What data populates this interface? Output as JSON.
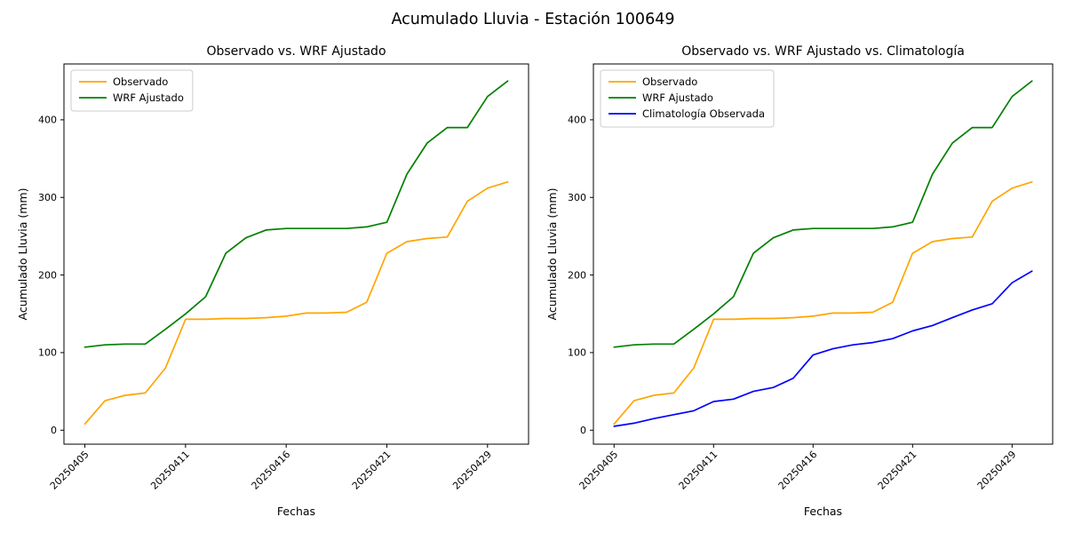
{
  "figure": {
    "title": "Acumulado Lluvia - Estación 100649"
  },
  "chart_data": [
    {
      "type": "line",
      "title": "Observado vs. WRF Ajustado",
      "xlabel": "Fechas",
      "ylabel": "Acumulado Lluvia (mm)",
      "ylim": [
        -18,
        472
      ],
      "yticks": [
        0,
        100,
        200,
        300,
        400
      ],
      "grid": false,
      "legend_position": "upper-left",
      "n_points": 22,
      "xticks": [
        {
          "index": 0,
          "label": "20250405"
        },
        {
          "index": 5,
          "label": "20250411"
        },
        {
          "index": 10,
          "label": "20250416"
        },
        {
          "index": 15,
          "label": "20250421"
        },
        {
          "index": 20,
          "label": "20250429"
        }
      ],
      "series": [
        {
          "name": "Observado",
          "color": "#ffa500",
          "values": [
            8,
            38,
            45,
            48,
            80,
            143,
            143,
            144,
            144,
            145,
            147,
            151,
            151,
            152,
            165,
            228,
            243,
            247,
            249,
            295,
            312,
            320
          ]
        },
        {
          "name": "WRF Ajustado",
          "color": "#008000",
          "values": [
            107,
            110,
            111,
            111,
            130,
            150,
            172,
            228,
            248,
            258,
            260,
            260,
            260,
            260,
            262,
            268,
            330,
            370,
            390,
            390,
            430,
            450
          ]
        }
      ]
    },
    {
      "type": "line",
      "title": "Observado vs. WRF Ajustado vs. Climatología",
      "xlabel": "Fechas",
      "ylabel": "Acumulado Lluvia (mm)",
      "ylim": [
        -18,
        472
      ],
      "yticks": [
        0,
        100,
        200,
        300,
        400
      ],
      "grid": false,
      "legend_position": "upper-left",
      "n_points": 22,
      "xticks": [
        {
          "index": 0,
          "label": "20250405"
        },
        {
          "index": 5,
          "label": "20250411"
        },
        {
          "index": 10,
          "label": "20250416"
        },
        {
          "index": 15,
          "label": "20250421"
        },
        {
          "index": 20,
          "label": "20250429"
        }
      ],
      "series": [
        {
          "name": "Observado",
          "color": "#ffa500",
          "values": [
            8,
            38,
            45,
            48,
            80,
            143,
            143,
            144,
            144,
            145,
            147,
            151,
            151,
            152,
            165,
            228,
            243,
            247,
            249,
            295,
            312,
            320
          ]
        },
        {
          "name": "WRF Ajustado",
          "color": "#008000",
          "values": [
            107,
            110,
            111,
            111,
            130,
            150,
            172,
            228,
            248,
            258,
            260,
            260,
            260,
            260,
            262,
            268,
            330,
            370,
            390,
            390,
            430,
            450
          ]
        },
        {
          "name": "Climatología Observada",
          "color": "#0000ff",
          "values": [
            5,
            9,
            15,
            20,
            25,
            37,
            40,
            50,
            55,
            67,
            97,
            105,
            110,
            113,
            118,
            128,
            135,
            145,
            155,
            163,
            190,
            205
          ]
        }
      ]
    }
  ]
}
